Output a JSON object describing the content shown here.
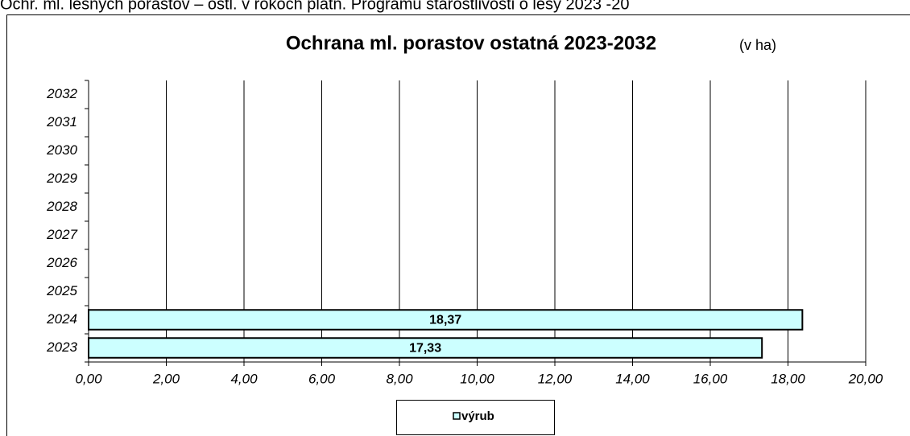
{
  "header_text": "Ochr. ml. lesných porastov – ostl. v rokoch platn. Programu starostlivosti o lesy 2023 -20",
  "chart_data": {
    "type": "barh",
    "title": "Ochrana ml. porastov ostatná  2023-2032",
    "unit_note": "(v ha)",
    "categories": [
      "2023",
      "2024",
      "2025",
      "2026",
      "2027",
      "2028",
      "2029",
      "2030",
      "2031",
      "2032"
    ],
    "series": [
      {
        "name": "výrub",
        "color": "#ccffff",
        "values": [
          17.33,
          18.37,
          null,
          null,
          null,
          null,
          null,
          null,
          null,
          null
        ],
        "value_labels": [
          "17,33",
          "18,37",
          null,
          null,
          null,
          null,
          null,
          null,
          null,
          null
        ]
      }
    ],
    "xlim": [
      0,
      20
    ],
    "xticks": [
      {
        "value": 0,
        "label": "0,00"
      },
      {
        "value": 2,
        "label": "2,00"
      },
      {
        "value": 4,
        "label": "4,00"
      },
      {
        "value": 6,
        "label": "6,00"
      },
      {
        "value": 8,
        "label": "8,00"
      },
      {
        "value": 10,
        "label": "10,00"
      },
      {
        "value": 12,
        "label": "12,00"
      },
      {
        "value": 14,
        "label": "14,00"
      },
      {
        "value": 16,
        "label": "16,00"
      },
      {
        "value": 18,
        "label": "18,00"
      },
      {
        "value": 20,
        "label": "20,00"
      }
    ],
    "grid": true,
    "legend": "bottom"
  }
}
